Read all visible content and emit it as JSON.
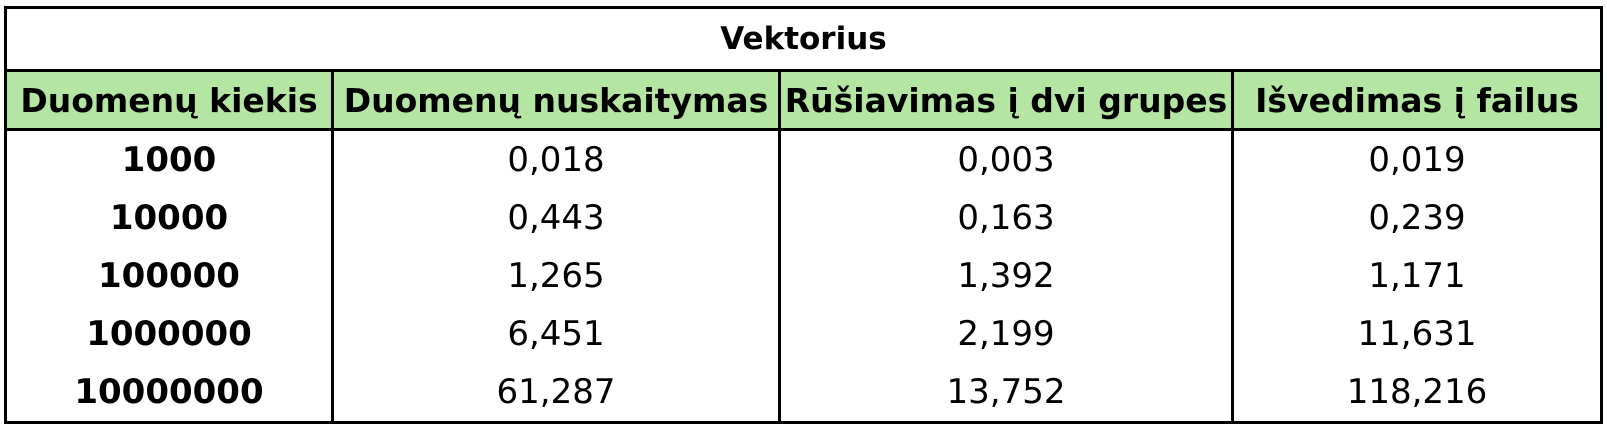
{
  "table": {
    "title": "Vektorius",
    "header_bg": "#b5e5a3",
    "columns": [
      "Duomenų kiekis",
      "Duomenų nuskaitymas",
      "Rūšiavimas į dvi grupes",
      "Išvedimas į failus"
    ],
    "rows": [
      [
        "1000",
        "0,018",
        "0,003",
        "0,019"
      ],
      [
        "10000",
        "0,443",
        "0,163",
        "0,239"
      ],
      [
        "100000",
        "1,265",
        "1,392",
        "1,171"
      ],
      [
        "1000000",
        "6,451",
        "2,199",
        "11,631"
      ],
      [
        "10000000",
        "61,287",
        "13,752",
        "118,216"
      ]
    ]
  }
}
